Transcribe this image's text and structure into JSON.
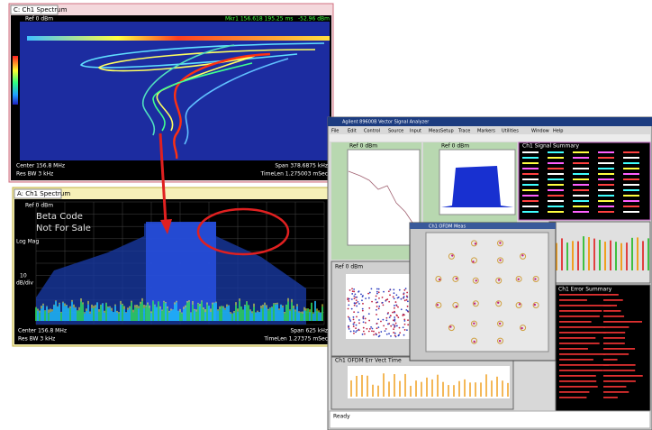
{
  "windows": [
    {
      "title": "C: Ch1 Spectrum",
      "ref": "Ref 0 dBm",
      "marker": "Mkr1 156.618 195.25 ms",
      "marker_value": "-52.96 dBm",
      "footer_left": [
        "Center 156.8 MHz",
        "Res BW 3 kHz"
      ],
      "footer_right": [
        "Span 378.6875 kHz",
        "TimeLen 1.275003 mSec"
      ]
    },
    {
      "title": "A: Ch1 Spectrum",
      "ref": "Ref 0 dBm",
      "watermark": [
        "Beta Code",
        "Not For Sale"
      ],
      "axis_labels": [
        "Log Mag",
        "10",
        "dB/div"
      ],
      "footer_left": [
        "Center 156.8 MHz",
        "Res BW 3 kHz"
      ],
      "footer_right": [
        "Span 625 kHz",
        "TimeLen 1.27375 mSec"
      ]
    }
  ],
  "app": {
    "title": "Agilent 89600B Vector Signal Analyzer",
    "menu": [
      "File",
      "Edit",
      "Control",
      "Source",
      "Input",
      "MeasSetup",
      "Trace",
      "Markers",
      "Utilities",
      "Window",
      "Help"
    ],
    "panes": [
      "Ref 0 dBm",
      "Ref 0 dBm",
      "Ch1 Signal Summary",
      "Ref 0 dBm",
      "Ch1 OFDM Meas",
      "Ch1 Error Summary",
      "Ch1 OFDM Err Vect Time"
    ],
    "status": "Ready"
  }
}
